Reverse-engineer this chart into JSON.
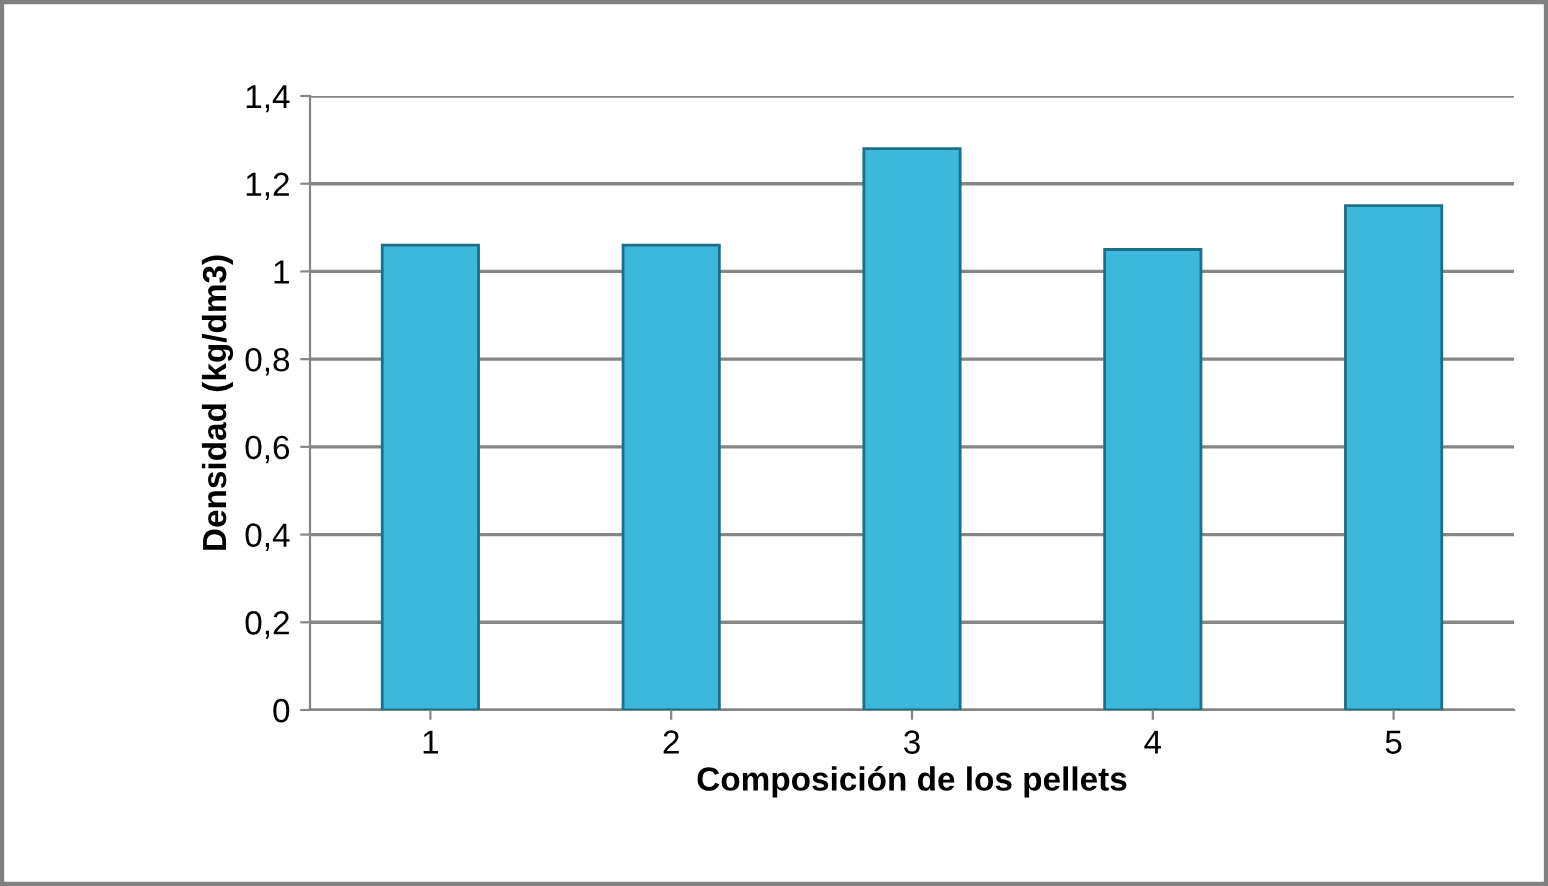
{
  "chart_data": {
    "type": "bar",
    "xlabel": "Composición de los pellets",
    "ylabel": "Densidad (kg/dm3)",
    "categories": [
      "1",
      "2",
      "3",
      "4",
      "5"
    ],
    "values": [
      1.06,
      1.06,
      1.28,
      1.05,
      1.15
    ],
    "color": "#3bb8dc",
    "ylim": [
      0,
      1.4
    ],
    "yticks": [
      {
        "value": 0,
        "label": "0"
      },
      {
        "value": 0.2,
        "label": "0,2"
      },
      {
        "value": 0.4,
        "label": "0,4"
      },
      {
        "value": 0.6,
        "label": "0,6"
      },
      {
        "value": 0.8,
        "label": "0,8"
      },
      {
        "value": 1,
        "label": "1"
      },
      {
        "value": 1.2,
        "label": "1,2"
      },
      {
        "value": 1.4,
        "label": "1,4"
      }
    ],
    "grid": "y"
  }
}
